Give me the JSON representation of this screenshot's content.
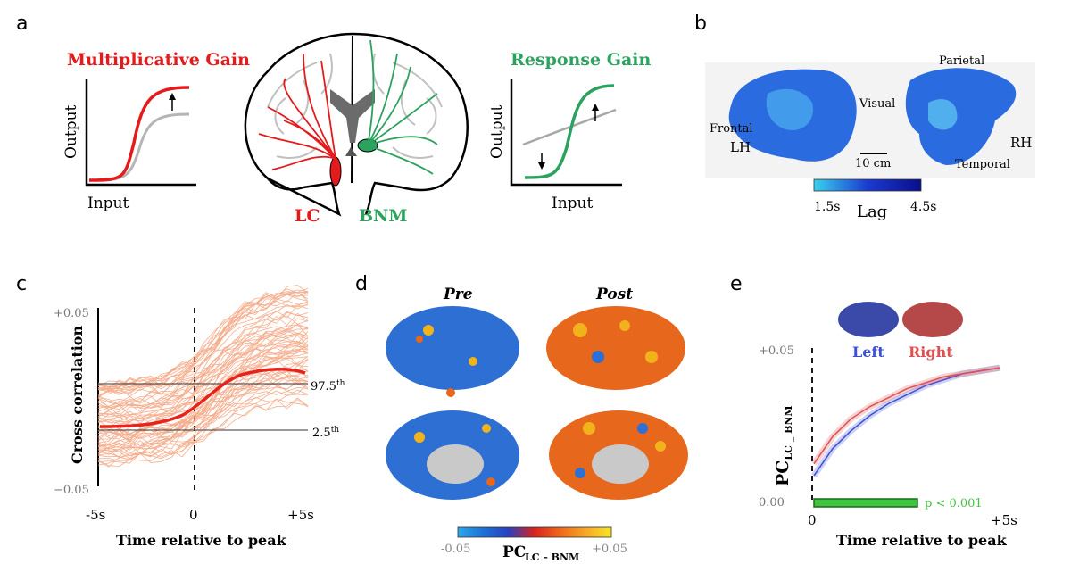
{
  "panels": {
    "a": "a",
    "b": "b",
    "c": "c",
    "d": "d",
    "e": "e"
  },
  "panel_a": {
    "left_title": "Multiplicative Gain",
    "right_title": "Response Gain",
    "y_label": "Output",
    "x_label": "Input",
    "lc_label": "LC",
    "bnm_label": "BNM",
    "colors": {
      "lc": "#e41a1c",
      "bnm": "#2ca25f",
      "baseline": "#b0b0b0"
    }
  },
  "panel_b": {
    "labels": {
      "parietal": "Parietal",
      "visual": "Visual",
      "frontal": "Frontal",
      "lh": "LH",
      "rh": "RH",
      "temporal": "Temporal",
      "scale": "10 cm"
    },
    "colorbar": {
      "min": "1.5s",
      "max": "4.5s",
      "label": "Lag",
      "colors": [
        "#3ad1ee",
        "#1a3bd0",
        "#0a0e8a"
      ]
    }
  },
  "panel_c": {
    "y_top": "+0.05",
    "y_bottom": "−0.05",
    "y_label": "Cross correlation",
    "x_ticks": [
      "-5s",
      "0",
      "+5s"
    ],
    "x_label": "Time relative to peak",
    "upper_threshold": "97.5",
    "upper_sup": "th",
    "lower_threshold": "2.5",
    "lower_sup": "th",
    "colors": {
      "mean": "#e8231b",
      "samples": "#f4a07a"
    }
  },
  "panel_d": {
    "pre": "Pre",
    "post": "Post",
    "colorbar": {
      "min": "-0.05",
      "max": "+0.05",
      "label": "PC",
      "sub": "LC – BNM",
      "colors": [
        "#29a9e8",
        "#1e6fd6",
        "#2a3fbf",
        "#d9231c",
        "#f06a1a",
        "#f7a625",
        "#f7e62b"
      ]
    }
  },
  "panel_e": {
    "left": "Left",
    "right": "Right",
    "y_top": "+0.05",
    "y_bottom": "0.00",
    "x_ticks": [
      "0",
      "+5s"
    ],
    "x_label": "Time relative to peak",
    "y_label": "PC",
    "y_sub": "LC _ BNM",
    "significance": "p < 0.001",
    "colors": {
      "left": "#3b4fd8",
      "right": "#e05050",
      "sig": "#3ec43e"
    }
  },
  "chart_data": [
    {
      "type": "line",
      "xlabel": "Time relative to peak",
      "ylabel": "Cross correlation",
      "x": [
        -5,
        -4,
        -3,
        -2,
        -1,
        0,
        1,
        2,
        3,
        4,
        5
      ],
      "xlim": [
        -5,
        5
      ],
      "ylim": [
        -0.05,
        0.05
      ],
      "series": [],
      "annotations": [
        "97.5th",
        "2.5th"
      ]
    },
    {
      "type": "line",
      "xlabel": "Time relative to peak",
      "ylabel": "PC LC _ BNM",
      "x": [
        0,
        0.5,
        1,
        1.5,
        2,
        2.5,
        3,
        3.5,
        4,
        4.5,
        5
      ],
      "xlim": [
        0,
        5
      ],
      "ylim": [
        0,
        0.05
      ],
      "series": [
        {
          "name": "Left",
          "values": [
            0.008,
            0.017,
            0.023,
            0.028,
            0.032,
            0.035,
            0.038,
            0.04,
            0.042,
            0.043,
            0.044
          ]
        },
        {
          "name": "Right",
          "values": [
            0.012,
            0.021,
            0.027,
            0.031,
            0.034,
            0.037,
            0.039,
            0.041,
            0.042,
            0.043,
            0.044
          ]
        }
      ],
      "annotations": [
        "p < 0.001"
      ]
    }
  ]
}
